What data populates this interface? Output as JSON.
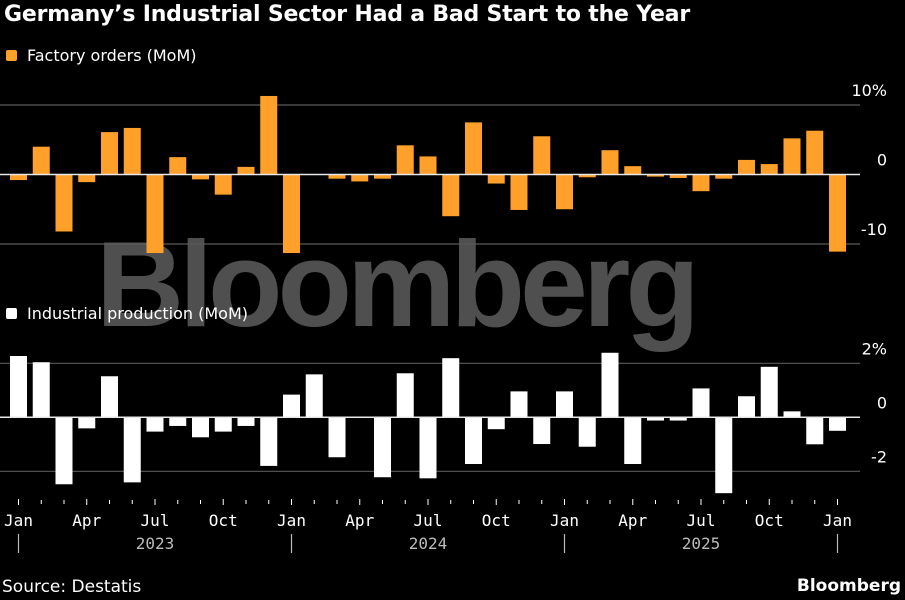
{
  "title": "Germany’s Industrial Sector Had a Bad Start to the Year",
  "source": "Source: Destatis",
  "brand": "Bloomberg",
  "watermark": "Bloomberg",
  "colors": {
    "orders": "#ffa02b",
    "production": "#ffffff",
    "gridline": "#5a5a5a",
    "zeroline": "#e8e8e8"
  },
  "chart_data": [
    {
      "type": "bar",
      "title": "Factory orders (MoM)",
      "legend": "Factory orders (MoM)",
      "ylabel": "",
      "yticks": [
        10,
        0,
        -10
      ],
      "ytick_labels": [
        "10%",
        "0",
        "-10"
      ],
      "ylim": [
        -12,
        12
      ],
      "grid": true,
      "x": [
        "2023-01",
        "2023-02",
        "2023-03",
        "2023-04",
        "2023-05",
        "2023-06",
        "2023-07",
        "2023-08",
        "2023-09",
        "2023-10",
        "2023-11",
        "2023-12",
        "2024-01",
        "2024-02",
        "2024-03",
        "2024-04",
        "2024-05",
        "2024-06",
        "2024-07",
        "2024-08",
        "2024-09",
        "2024-10",
        "2024-11",
        "2024-12",
        "2025-01",
        "2025-02",
        "2025-03",
        "2025-04",
        "2025-05",
        "2025-06",
        "2025-07",
        "2025-08",
        "2025-09",
        "2025-10",
        "2025-11",
        "2025-12",
        "2026-01"
      ],
      "values": [
        -0.8,
        4.0,
        -8.2,
        -1.1,
        6.1,
        6.7,
        -11.3,
        2.5,
        -0.7,
        -2.9,
        1.1,
        11.3,
        -11.3,
        0.0,
        -0.6,
        -1.0,
        -0.6,
        4.2,
        2.6,
        -6.0,
        7.5,
        -1.3,
        -5.1,
        5.5,
        -5.0,
        -0.4,
        3.5,
        1.2,
        -0.3,
        -0.5,
        -2.4,
        -0.6,
        2.1,
        1.5,
        5.2,
        6.3,
        -11.1
      ]
    },
    {
      "type": "bar",
      "title": "Industrial production (MoM)",
      "legend": "Industrial production (MoM)",
      "ylabel": "",
      "yticks": [
        2,
        0,
        -2
      ],
      "ytick_labels": [
        "2%",
        "0",
        "-2"
      ],
      "ylim": [
        -3,
        2.6
      ],
      "grid": true,
      "x": [
        "2023-01",
        "2023-02",
        "2023-03",
        "2023-04",
        "2023-05",
        "2023-06",
        "2023-07",
        "2023-08",
        "2023-09",
        "2023-10",
        "2023-11",
        "2023-12",
        "2024-01",
        "2024-02",
        "2024-03",
        "2024-04",
        "2024-05",
        "2024-06",
        "2024-07",
        "2024-08",
        "2024-09",
        "2024-10",
        "2024-11",
        "2024-12",
        "2025-01",
        "2025-02",
        "2025-03",
        "2025-04",
        "2025-05",
        "2025-06",
        "2025-07",
        "2025-08",
        "2025-09",
        "2025-10",
        "2025-11",
        "2025-12",
        "2026-01"
      ],
      "values": [
        2.27,
        2.04,
        -2.48,
        -0.41,
        1.52,
        -2.41,
        -0.53,
        -0.32,
        -0.74,
        -0.53,
        -0.32,
        -1.8,
        0.84,
        1.59,
        -1.48,
        0.0,
        -2.22,
        1.63,
        -2.26,
        2.19,
        -1.73,
        -0.44,
        0.96,
        -0.99,
        0.96,
        -1.09,
        2.39,
        -1.73,
        -0.12,
        -0.12,
        1.07,
        -2.81,
        0.78,
        1.87,
        0.22,
        -1.0,
        -0.5
      ]
    }
  ],
  "xaxis": {
    "month_labels": [
      {
        "index": 0,
        "label": "Jan"
      },
      {
        "index": 3,
        "label": "Apr"
      },
      {
        "index": 6,
        "label": "Jul"
      },
      {
        "index": 9,
        "label": "Oct"
      },
      {
        "index": 12,
        "label": "Jan"
      },
      {
        "index": 15,
        "label": "Apr"
      },
      {
        "index": 18,
        "label": "Jul"
      },
      {
        "index": 21,
        "label": "Oct"
      },
      {
        "index": 24,
        "label": "Jan"
      },
      {
        "index": 27,
        "label": "Apr"
      },
      {
        "index": 30,
        "label": "Jul"
      },
      {
        "index": 33,
        "label": "Oct"
      },
      {
        "index": 36,
        "label": "Jan"
      }
    ],
    "year_labels": [
      {
        "index": 6,
        "label": "2023"
      },
      {
        "index": 18,
        "label": "2024"
      },
      {
        "index": 30,
        "label": "2025"
      }
    ],
    "year_separators": [
      0,
      12,
      24,
      36
    ]
  }
}
